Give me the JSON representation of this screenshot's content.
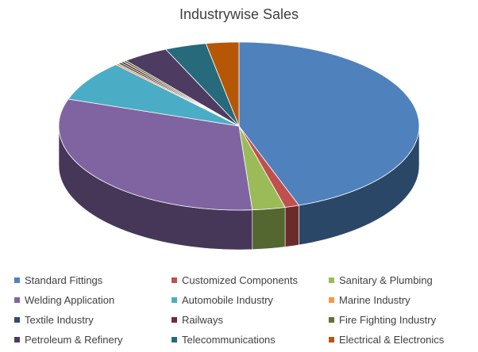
{
  "chart_data": {
    "type": "pie",
    "title": "Industrywise Sales",
    "legend_position": "bottom",
    "categories": [
      "Standard Fittings",
      "Customized Components",
      "Sanitary & Plumbing",
      "Welding Application",
      "Automobile Industry",
      "Marine Industry",
      "Textile Industry",
      "Railways",
      "Fire Fighting Industry",
      "Petroleum & Refinery",
      "Telecommunications",
      "Electrical & Electronics"
    ],
    "values": [
      45.5,
      1.3,
      3.0,
      32.0,
      8.0,
      0.3,
      0.3,
      0.3,
      0.3,
      4.2,
      3.8,
      3.0
    ],
    "colors": [
      "#4F81BD",
      "#C0504D",
      "#9BBB59",
      "#8064A2",
      "#4BACC6",
      "#F79646",
      "#2C4D75",
      "#772C2A",
      "#5F7530",
      "#4D3B62",
      "#276A7C",
      "#B65708"
    ]
  }
}
